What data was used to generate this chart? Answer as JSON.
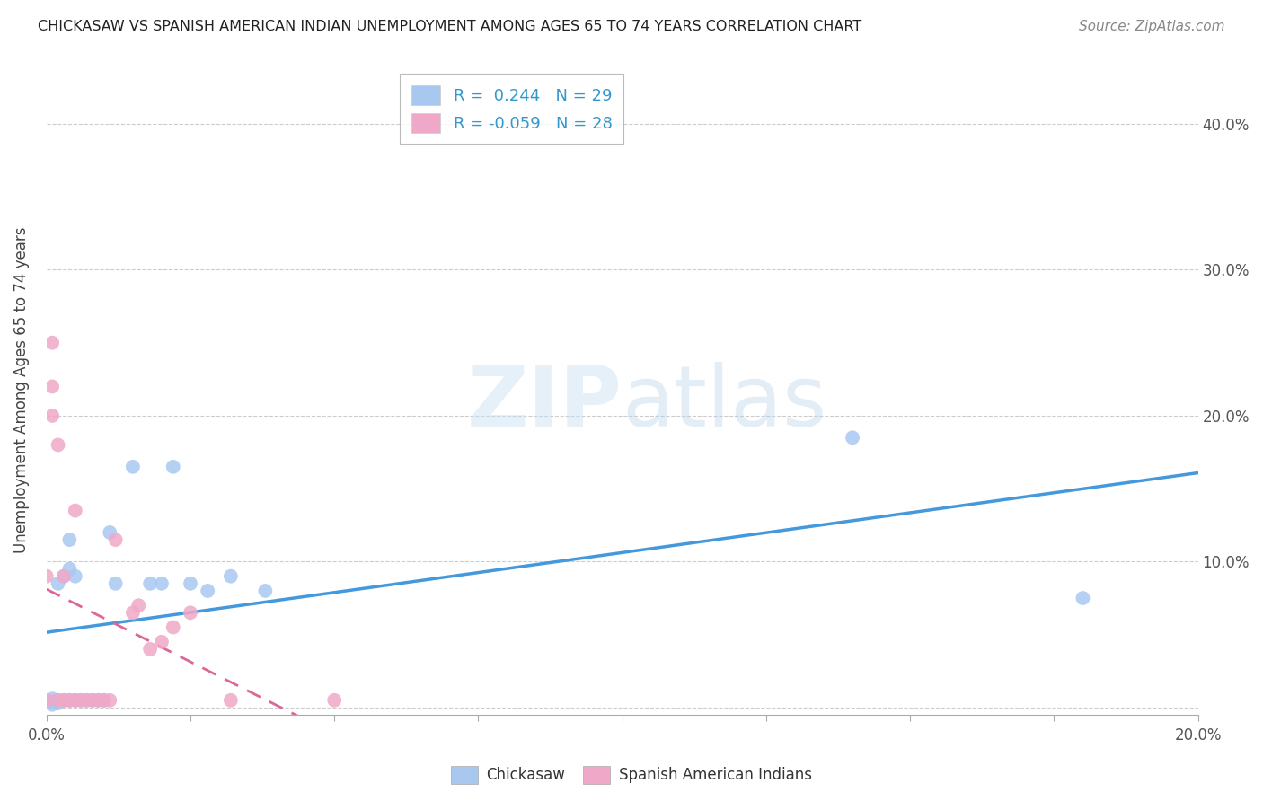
{
  "title": "CHICKASAW VS SPANISH AMERICAN INDIAN UNEMPLOYMENT AMONG AGES 65 TO 74 YEARS CORRELATION CHART",
  "source": "Source: ZipAtlas.com",
  "ylabel": "Unemployment Among Ages 65 to 74 years",
  "xlim": [
    0.0,
    0.2
  ],
  "ylim": [
    -0.005,
    0.44
  ],
  "xticks": [
    0.0,
    0.025,
    0.05,
    0.075,
    0.1,
    0.125,
    0.15,
    0.175,
    0.2
  ],
  "xtick_labels": [
    "0.0%",
    "",
    "",
    "",
    "",
    "",
    "",
    "",
    "20.0%"
  ],
  "yticks": [
    0.0,
    0.1,
    0.2,
    0.3,
    0.4
  ],
  "ytick_labels_right": [
    "",
    "10.0%",
    "20.0%",
    "30.0%",
    "40.0%"
  ],
  "chickasaw_color": "#a8c8f0",
  "spanish_color": "#f0a8c8",
  "chickasaw_line_color": "#4499dd",
  "spanish_line_color": "#dd6699",
  "watermark_text": "ZIPatlas",
  "watermark_color": "#ddeeff",
  "R_chickasaw": 0.244,
  "R_spanish": -0.059,
  "N_chickasaw": 29,
  "N_spanish": 28,
  "chickasaw_x": [
    0.001,
    0.001,
    0.001,
    0.002,
    0.002,
    0.002,
    0.003,
    0.003,
    0.004,
    0.004,
    0.005,
    0.005,
    0.006,
    0.007,
    0.008,
    0.009,
    0.01,
    0.011,
    0.012,
    0.015,
    0.018,
    0.02,
    0.022,
    0.025,
    0.028,
    0.032,
    0.038,
    0.14,
    0.18
  ],
  "chickasaw_y": [
    0.002,
    0.004,
    0.006,
    0.003,
    0.005,
    0.085,
    0.005,
    0.09,
    0.095,
    0.115,
    0.005,
    0.09,
    0.005,
    0.005,
    0.005,
    0.005,
    0.005,
    0.12,
    0.085,
    0.165,
    0.085,
    0.085,
    0.165,
    0.085,
    0.08,
    0.09,
    0.08,
    0.185,
    0.075
  ],
  "spanish_x": [
    0.0,
    0.0,
    0.001,
    0.001,
    0.001,
    0.002,
    0.002,
    0.003,
    0.003,
    0.004,
    0.004,
    0.005,
    0.005,
    0.006,
    0.007,
    0.008,
    0.009,
    0.01,
    0.011,
    0.012,
    0.015,
    0.016,
    0.018,
    0.02,
    0.022,
    0.025,
    0.032,
    0.05
  ],
  "spanish_y": [
    0.005,
    0.09,
    0.25,
    0.22,
    0.2,
    0.18,
    0.005,
    0.005,
    0.09,
    0.005,
    0.005,
    0.135,
    0.005,
    0.005,
    0.005,
    0.005,
    0.005,
    0.005,
    0.005,
    0.115,
    0.065,
    0.07,
    0.04,
    0.045,
    0.055,
    0.065,
    0.005,
    0.005
  ]
}
